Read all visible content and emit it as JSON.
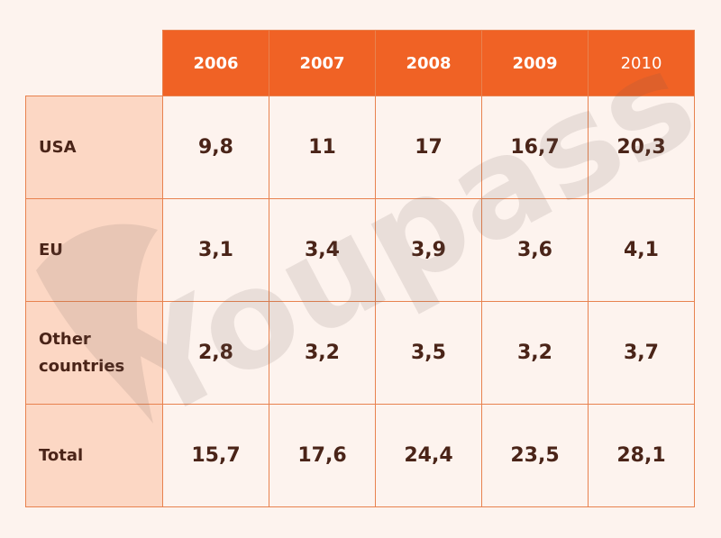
{
  "watermark": {
    "text": "Youpass"
  },
  "chart_data": {
    "type": "table",
    "columns": [
      "2006",
      "2007",
      "2008",
      "2009",
      "2010"
    ],
    "rows": [
      {
        "label": "USA",
        "values": [
          "9,8",
          "11",
          "17",
          "16,7",
          "20,3"
        ]
      },
      {
        "label": "EU",
        "values": [
          "3,1",
          "3,4",
          "3,9",
          "3,6",
          "4,1"
        ]
      },
      {
        "label": "Other countries",
        "values": [
          "2,8",
          "3,2",
          "3,5",
          "3,2",
          "3,7"
        ]
      },
      {
        "label": "Total",
        "values": [
          "15,7",
          "17,6",
          "24,4",
          "23,5",
          "28,1"
        ]
      }
    ]
  }
}
